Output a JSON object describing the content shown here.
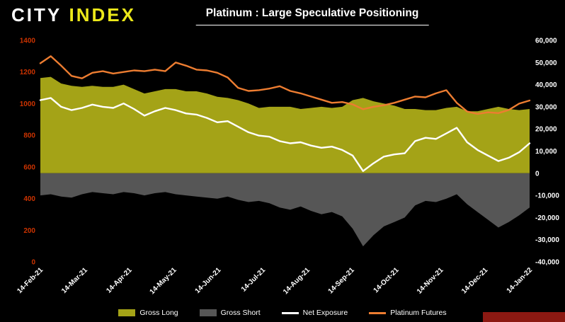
{
  "logo": {
    "part1": "CITY",
    "part2": "INDEX"
  },
  "title": "Platinum : Large Speculative Positioning",
  "colors": {
    "background": "#000000",
    "gross_long": "#a4a317",
    "gross_short": "#565656",
    "net_exposure": "#ffffff",
    "platinum_futures": "#ed7d31",
    "left_axis_text": "#cc3300",
    "right_axis_text": "#ffffff",
    "x_axis_text": "#ffffff",
    "logo_yellow": "#ece81a",
    "corner_bar": "#8c1912"
  },
  "chart_data": {
    "type": "area",
    "title": "Platinum : Large Speculative Positioning",
    "x_labels": [
      "14-Feb-21",
      "14-Mar-21",
      "14-Apr-21",
      "14-May-21",
      "14-Jun-21",
      "14-Jul-21",
      "14-Aug-21",
      "14-Sep-21",
      "14-Oct-21",
      "14-Nov-21",
      "14-Dec-21",
      "14-Jan-22"
    ],
    "left_axis": {
      "min": 0,
      "max": 1400,
      "step": 200,
      "ticks": [
        1400,
        1200,
        1000,
        800,
        600,
        400,
        200,
        0
      ]
    },
    "right_axis": {
      "min": -40000,
      "max": 60000,
      "step": 10000,
      "ticks": [
        60000,
        50000,
        40000,
        30000,
        20000,
        10000,
        0,
        -10000,
        -20000,
        -30000,
        -40000
      ]
    },
    "grid": false,
    "legend_position": "bottom",
    "series": [
      {
        "name": "Gross Long",
        "type": "area",
        "axis": "right",
        "color": "#a4a317",
        "values": [
          43000,
          43500,
          40500,
          39500,
          39000,
          39500,
          39000,
          39000,
          40000,
          38000,
          36000,
          37000,
          38000,
          38000,
          37000,
          37000,
          36000,
          34500,
          34000,
          33000,
          31500,
          29500,
          30000,
          30000,
          30000,
          29000,
          29500,
          30000,
          29500,
          30000,
          33000,
          34000,
          32500,
          31500,
          30500,
          29000,
          29000,
          28500,
          28500,
          29500,
          30000,
          28000,
          28000,
          29000,
          30000,
          29000,
          28500,
          29000
        ]
      },
      {
        "name": "Gross Short",
        "type": "area",
        "axis": "right",
        "color": "#565656",
        "values": [
          -10000,
          -9500,
          -10500,
          -11000,
          -9500,
          -8500,
          -9000,
          -9500,
          -8500,
          -9000,
          -10000,
          -9000,
          -8500,
          -9500,
          -10000,
          -10500,
          -11000,
          -11500,
          -10500,
          -12000,
          -13000,
          -12500,
          -13500,
          -15500,
          -16500,
          -15000,
          -17000,
          -18500,
          -17500,
          -19500,
          -25000,
          -33000,
          -28000,
          -24000,
          -22000,
          -20000,
          -14500,
          -12500,
          -13000,
          -11500,
          -9500,
          -14000,
          -17500,
          -21000,
          -24500,
          -22000,
          -19000,
          -15500
        ]
      },
      {
        "name": "Net Exposure",
        "type": "line",
        "axis": "right",
        "color": "#ffffff",
        "values": [
          33000,
          34000,
          30000,
          28500,
          29500,
          31000,
          30000,
          29500,
          31500,
          29000,
          26000,
          28000,
          29500,
          28500,
          27000,
          26500,
          25000,
          23000,
          23500,
          21000,
          18500,
          17000,
          16500,
          14500,
          13500,
          14000,
          12500,
          11500,
          12000,
          10500,
          8000,
          1000,
          4500,
          7500,
          8500,
          9000,
          14500,
          16000,
          15500,
          18000,
          20500,
          14000,
          10500,
          8000,
          5500,
          7000,
          9500,
          13500
        ]
      },
      {
        "name": "Platinum Futures",
        "type": "line",
        "axis": "left",
        "color": "#ed7d31",
        "values": [
          1255,
          1300,
          1240,
          1175,
          1160,
          1195,
          1205,
          1190,
          1200,
          1210,
          1205,
          1215,
          1205,
          1260,
          1240,
          1215,
          1210,
          1195,
          1165,
          1100,
          1080,
          1085,
          1095,
          1110,
          1080,
          1065,
          1045,
          1025,
          1005,
          1010,
          995,
          965,
          980,
          990,
          1005,
          1025,
          1045,
          1040,
          1065,
          1085,
          1005,
          950,
          935,
          945,
          940,
          960,
          1000,
          1020
        ]
      }
    ]
  }
}
